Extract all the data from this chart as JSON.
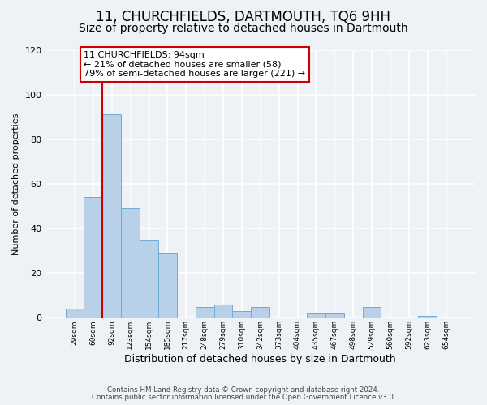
{
  "title": "11, CHURCHFIELDS, DARTMOUTH, TQ6 9HH",
  "subtitle": "Size of property relative to detached houses in Dartmouth",
  "xlabel": "Distribution of detached houses by size in Dartmouth",
  "ylabel": "Number of detached properties",
  "bin_labels": [
    "29sqm",
    "60sqm",
    "92sqm",
    "123sqm",
    "154sqm",
    "185sqm",
    "217sqm",
    "248sqm",
    "279sqm",
    "310sqm",
    "342sqm",
    "373sqm",
    "404sqm",
    "435sqm",
    "467sqm",
    "498sqm",
    "529sqm",
    "560sqm",
    "592sqm",
    "623sqm",
    "654sqm"
  ],
  "bar_heights": [
    4,
    54,
    91,
    49,
    35,
    29,
    0,
    5,
    6,
    3,
    5,
    0,
    0,
    2,
    2,
    0,
    5,
    0,
    0,
    1,
    0
  ],
  "bar_color": "#b8d0e8",
  "bar_edge_color": "#6baed6",
  "vline_bin_index": 2,
  "vline_color": "#cc0000",
  "annotation_text": "11 CHURCHFIELDS: 94sqm\n← 21% of detached houses are smaller (58)\n79% of semi-detached houses are larger (221) →",
  "annotation_box_facecolor": "#ffffff",
  "annotation_box_edgecolor": "#cc0000",
  "ylim": [
    0,
    120
  ],
  "yticks": [
    0,
    20,
    40,
    60,
    80,
    100,
    120
  ],
  "bg_color": "#eef2f7",
  "grid_color": "#ffffff",
  "title_fontsize": 12,
  "subtitle_fontsize": 10,
  "ylabel_fontsize": 8,
  "xlabel_fontsize": 9,
  "footer_line1": "Contains HM Land Registry data © Crown copyright and database right 2024.",
  "footer_line2": "Contains public sector information licensed under the Open Government Licence v3.0."
}
